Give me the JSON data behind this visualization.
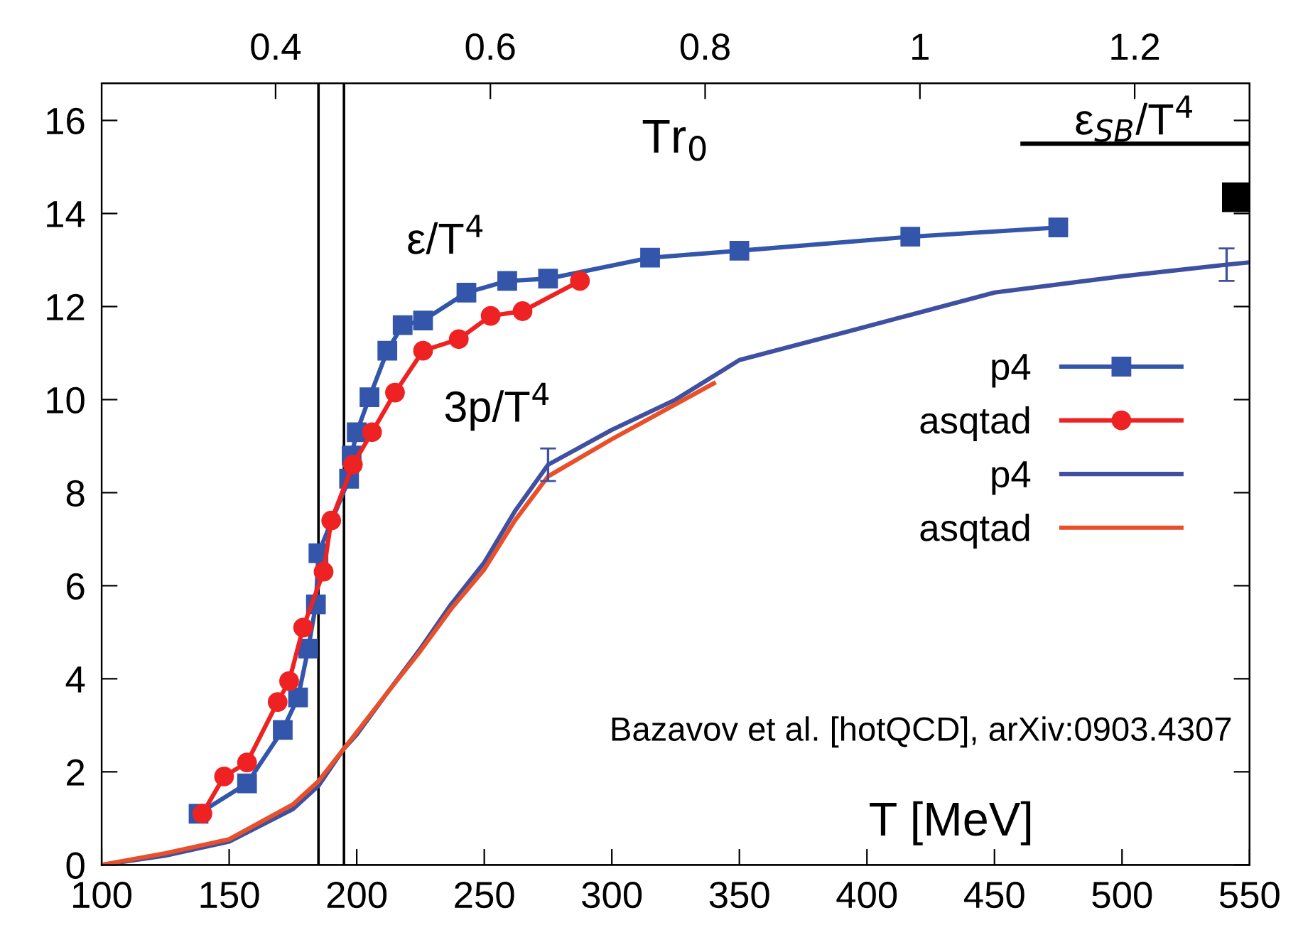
{
  "chart_data": {
    "type": "line",
    "xlabel": "T [MeV]",
    "x2label": "Tr$_{0}$",
    "xlim": [
      100,
      550
    ],
    "xticks": [
      100,
      150,
      200,
      250,
      300,
      350,
      400,
      450,
      500,
      550
    ],
    "ylim": [
      0,
      16.8
    ],
    "yticks": [
      0,
      2,
      4,
      6,
      8,
      10,
      12,
      14,
      16
    ],
    "x2lim": [
      0.238,
      1.307
    ],
    "x2ticks": [
      0.4,
      0.6,
      0.8,
      1,
      1.2
    ],
    "legend": "right",
    "grid": false,
    "series": [
      {
        "name": "p4",
        "marker": "square",
        "color": "#3355aa",
        "x": [
          138,
          157,
          171,
          177,
          181,
          184,
          185,
          197,
          198,
          200,
          205,
          212,
          218,
          226,
          243,
          259,
          275,
          315,
          350,
          417,
          475
        ],
        "values": [
          1.1,
          1.75,
          2.9,
          3.6,
          4.65,
          5.6,
          6.7,
          8.3,
          8.8,
          9.3,
          10.05,
          11.05,
          11.6,
          11.7,
          12.3,
          12.55,
          12.6,
          13.05,
          13.2,
          13.5,
          13.7
        ]
      },
      {
        "name": "asqtad",
        "marker": "circle",
        "color": "#ee2222",
        "x": [
          139.5,
          148,
          157,
          169,
          173.5,
          179,
          187,
          190,
          198.5,
          206,
          215,
          226,
          240,
          252.5,
          265,
          287.5
        ],
        "values": [
          1.1,
          1.9,
          2.2,
          3.5,
          3.95,
          5.1,
          6.3,
          7.4,
          8.6,
          9.3,
          10.15,
          11.05,
          11.3,
          11.8,
          11.9,
          12.55
        ]
      },
      {
        "name": "p4",
        "color": "#4050a0",
        "x": [
          100,
          125,
          150,
          175,
          185,
          195,
          200,
          212,
          225,
          237,
          250,
          262,
          275,
          300,
          325,
          350,
          395,
          450,
          500,
          541,
          550
        ],
        "values": [
          0,
          0.2,
          0.5,
          1.2,
          1.7,
          2.5,
          2.8,
          3.7,
          4.65,
          5.6,
          6.5,
          7.6,
          8.6,
          9.35,
          10.0,
          10.85,
          11.5,
          12.3,
          12.65,
          12.9,
          12.95
        ],
        "errors": [
          null,
          null,
          null,
          null,
          null,
          null,
          null,
          null,
          null,
          null,
          null,
          null,
          0.35,
          null,
          null,
          null,
          null,
          null,
          null,
          0.35,
          null
        ]
      },
      {
        "name": "asqtad",
        "color": "#e8502a",
        "x": [
          100,
          125,
          150,
          175,
          185,
          195,
          200,
          212,
          225,
          237,
          250,
          262,
          275,
          300,
          325,
          340
        ],
        "values": [
          0,
          0.25,
          0.55,
          1.3,
          1.8,
          2.5,
          2.85,
          3.7,
          4.6,
          5.5,
          6.35,
          7.4,
          8.35,
          9.15,
          9.9,
          10.35
        ]
      },
      {
        "color": "#000000",
        "x": [
          461,
          550
        ],
        "values": [
          15.5,
          15.5
        ]
      },
      {
        "type": "scatter",
        "marker": "square",
        "color": "#000000",
        "x": [
          545
        ],
        "values": [
          14.35
        ]
      }
    ],
    "ref_lines": [
      {
        "axis": "x",
        "value": 185,
        "color": "#000000"
      },
      {
        "axis": "x",
        "value": 195,
        "color": "#000000"
      }
    ],
    "annotations": [
      "ε/T$^{4}$",
      "3p/T$^{4}$",
      {
        "text": "ε$_{SB}$/T$^{4}$",
        "x": 505,
        "y": 15.5
      },
      "Bazavov et al. [hotQCD], arXiv:0903.4307"
    ]
  }
}
